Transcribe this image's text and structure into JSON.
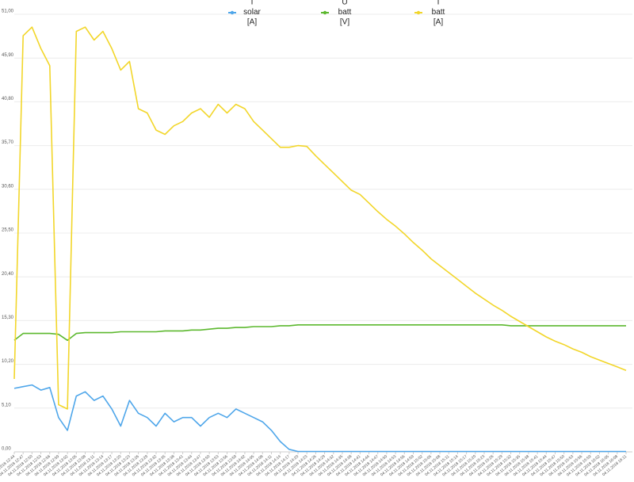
{
  "chart_data": {
    "type": "line",
    "categories": [
      "04.11.2018 12:44",
      "04.11.2018 12:47",
      "04.11.2018 12:50",
      "04.11.2018 12:53",
      "04.11.2018 12:56",
      "04.11.2018 12:59",
      "04.11.2018 13:02",
      "04.11.2018 13:05",
      "04.11.2018 13:08",
      "04.11.2018 13:11",
      "04.11.2018 13:14",
      "04.11.2018 13:17",
      "04.11.2018 13:20",
      "04.11.2018 13:23",
      "04.11.2018 13:26",
      "04.11.2018 13:29",
      "04.11.2018 13:32",
      "04.11.2018 13:35",
      "04.11.2018 13:38",
      "04.11.2018 13:41",
      "04.11.2018 13:44",
      "04.11.2018 13:47",
      "04.11.2018 13:50",
      "04.11.2018 13:53",
      "04.11.2018 13:56",
      "04.11.2018 13:59",
      "04.11.2018 14:02",
      "04.11.2018 14:05",
      "04.11.2018 14:08",
      "04.11.2018 14:11",
      "04.11.2018 14:14",
      "04.11.2018 14:17",
      "04.11.2018 14:20",
      "04.11.2018 14:23",
      "04.11.2018 14:26",
      "04.11.2018 14:29",
      "04.11.2018 14:32",
      "04.11.2018 14:35",
      "04.11.2018 14:38",
      "04.11.2018 14:41",
      "04.11.2018 14:44",
      "04.11.2018 14:47",
      "04.11.2018 14:50",
      "04.11.2018 14:53",
      "04.11.2018 14:56",
      "04.11.2018 14:59",
      "04.11.2018 15:02",
      "04.11.2018 15:05",
      "04.11.2018 15:08",
      "04.11.2018 15:11",
      "04.11.2018 15:14",
      "04.11.2018 15:17",
      "04.11.2018 15:20",
      "04.11.2018 15:23",
      "04.11.2018 15:26",
      "04.11.2018 15:29",
      "04.11.2018 15:32",
      "04.11.2018 15:35",
      "04.11.2018 15:38",
      "04.11.2018 15:41",
      "04.11.2018 15:44",
      "04.11.2018 15:47",
      "04.11.2018 15:50",
      "04.11.2018 15:53",
      "04.11.2018 15:56",
      "04.11.2018 15:59",
      "04.11.2018 16:02",
      "04.11.2018 16:05",
      "04.11.2018 16:08",
      "04.11.2018 16:11"
    ],
    "series": [
      {
        "name": [
          "I",
          "solar",
          "[A]"
        ],
        "color": "#4ea6ea",
        "values": [
          7.4,
          7.6,
          7.8,
          7.2,
          7.5,
          4.0,
          2.5,
          6.5,
          7.0,
          6.0,
          6.5,
          5.0,
          3.0,
          6.0,
          4.5,
          4.0,
          3.0,
          4.5,
          3.5,
          4.0,
          4.0,
          3.0,
          4.0,
          4.5,
          4.0,
          5.0,
          4.5,
          4.0,
          3.5,
          2.5,
          1.2,
          0.3,
          0.05,
          0.05,
          0.05,
          0.05,
          0.05,
          0.05,
          0.05,
          0.05,
          0.05,
          0.05,
          0.05,
          0.05,
          0.05,
          0.05,
          0.05,
          0.05,
          0.05,
          0.05,
          0.05,
          0.05,
          0.05,
          0.05,
          0.05,
          0.05,
          0.05,
          0.05,
          0.05,
          0.05,
          0.05,
          0.05,
          0.05,
          0.05,
          0.05,
          0.05,
          0.05,
          0.05,
          0.05,
          0.05
        ]
      },
      {
        "name": [
          "U",
          "batt",
          "[V]"
        ],
        "color": "#5cb82e",
        "values": [
          13.0,
          13.8,
          13.8,
          13.8,
          13.8,
          13.7,
          13.0,
          13.8,
          13.9,
          13.9,
          13.9,
          13.9,
          14.0,
          14.0,
          14.0,
          14.0,
          14.0,
          14.1,
          14.1,
          14.1,
          14.2,
          14.2,
          14.3,
          14.4,
          14.4,
          14.5,
          14.5,
          14.6,
          14.6,
          14.6,
          14.7,
          14.7,
          14.8,
          14.8,
          14.8,
          14.8,
          14.8,
          14.8,
          14.8,
          14.8,
          14.8,
          14.8,
          14.8,
          14.8,
          14.8,
          14.8,
          14.8,
          14.8,
          14.8,
          14.8,
          14.8,
          14.8,
          14.8,
          14.8,
          14.8,
          14.8,
          14.7,
          14.7,
          14.7,
          14.7,
          14.7,
          14.7,
          14.7,
          14.7,
          14.7,
          14.7,
          14.7,
          14.7,
          14.7,
          14.7
        ]
      },
      {
        "name": [
          "I",
          "batt",
          "[A]"
        ],
        "color": "#f2d62a",
        "values": [
          8.5,
          48.5,
          49.5,
          47,
          45,
          5.5,
          5,
          49,
          49.5,
          48,
          49,
          47,
          44.5,
          45.5,
          40,
          39.5,
          37.5,
          37,
          38,
          38.5,
          39.5,
          40,
          39,
          40.5,
          39.5,
          40.5,
          40,
          38.5,
          37.5,
          36.5,
          35.5,
          35.5,
          35.7,
          35.6,
          34.5,
          33.5,
          32.5,
          31.5,
          30.5,
          30,
          29,
          28,
          27.1,
          26.3,
          25.4,
          24.4,
          23.5,
          22.5,
          21.7,
          20.9,
          20.1,
          19.3,
          18.5,
          17.8,
          17.1,
          16.5,
          15.8,
          15.2,
          14.6,
          14,
          13.4,
          12.9,
          12.5,
          12,
          11.6,
          11.1,
          10.7,
          10.3,
          9.9,
          9.5
        ]
      }
    ],
    "ylim": [
      0,
      51
    ],
    "yticks": [
      {
        "value": 0,
        "label": "0,00"
      },
      {
        "value": 5.1,
        "label": "5,10"
      },
      {
        "value": 10.2,
        "label": "10,20"
      },
      {
        "value": 15.3,
        "label": "15,30"
      },
      {
        "value": 20.4,
        "label": "20,40"
      },
      {
        "value": 25.5,
        "label": "25,50"
      },
      {
        "value": 30.6,
        "label": "30,60"
      },
      {
        "value": 35.7,
        "label": "35,70"
      },
      {
        "value": 40.8,
        "label": "40,80"
      },
      {
        "value": 45.9,
        "label": "45,90"
      },
      {
        "value": 51,
        "label": "51,00"
      }
    ],
    "grid": true,
    "legend": "top"
  }
}
